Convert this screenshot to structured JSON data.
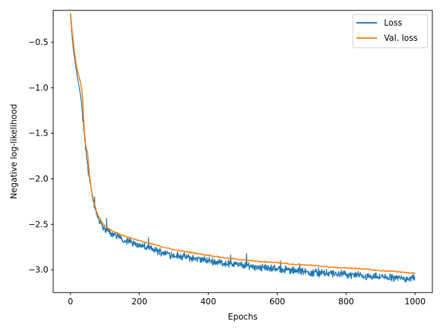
{
  "chart_data": {
    "type": "line",
    "title": "",
    "xlabel": "Epochs",
    "ylabel": "Negative log-likelihood",
    "xlim": [
      -50,
      1050
    ],
    "ylim": [
      -3.25,
      -0.15
    ],
    "xticks": [
      0,
      200,
      400,
      600,
      800,
      1000
    ],
    "yticks": [
      -3.0,
      -2.5,
      -2.0,
      -1.5,
      -1.0,
      -0.5
    ],
    "xtick_labels": [
      "0",
      "200",
      "400",
      "600",
      "800",
      "1000"
    ],
    "ytick_labels": [
      "−3.0",
      "−2.5",
      "−2.0",
      "−1.5",
      "−1.0",
      "−0.5"
    ],
    "grid": false,
    "legend_position": "top-right",
    "series": [
      {
        "name": "Loss",
        "color": "#1f77b4",
        "noisy": true,
        "x": [
          0,
          5,
          10,
          15,
          20,
          25,
          30,
          35,
          40,
          45,
          50,
          55,
          60,
          65,
          70,
          75,
          80,
          90,
          100,
          110,
          120,
          140,
          160,
          180,
          200,
          250,
          300,
          350,
          400,
          450,
          500,
          550,
          600,
          650,
          700,
          750,
          800,
          850,
          900,
          950,
          1000
        ],
        "y": [
          -0.2,
          -0.45,
          -0.62,
          -0.75,
          -0.88,
          -0.98,
          -1.1,
          -1.3,
          -1.5,
          -1.7,
          -1.85,
          -2.0,
          -2.12,
          -2.22,
          -2.3,
          -2.37,
          -2.42,
          -2.5,
          -2.55,
          -2.58,
          -2.6,
          -2.64,
          -2.68,
          -2.7,
          -2.73,
          -2.79,
          -2.84,
          -2.87,
          -2.9,
          -2.93,
          -2.95,
          -2.97,
          -2.99,
          -3.01,
          -3.03,
          -3.04,
          -3.05,
          -3.07,
          -3.08,
          -3.09,
          -3.1
        ]
      },
      {
        "name": "Val. loss",
        "color": "#ff7f0e",
        "noisy": false,
        "x": [
          0,
          5,
          10,
          15,
          20,
          25,
          30,
          35,
          40,
          45,
          50,
          55,
          60,
          65,
          70,
          75,
          80,
          90,
          100,
          120,
          150,
          200,
          250,
          300,
          350,
          400,
          450,
          500,
          550,
          600,
          650,
          700,
          750,
          800,
          850,
          900,
          950,
          1000
        ],
        "y": [
          -0.18,
          -0.38,
          -0.55,
          -0.7,
          -0.8,
          -0.88,
          -0.95,
          -1.08,
          -1.45,
          -1.65,
          -1.72,
          -1.95,
          -2.1,
          -2.2,
          -2.28,
          -2.35,
          -2.4,
          -2.47,
          -2.52,
          -2.57,
          -2.62,
          -2.68,
          -2.73,
          -2.78,
          -2.81,
          -2.84,
          -2.87,
          -2.89,
          -2.91,
          -2.92,
          -2.94,
          -2.95,
          -2.97,
          -2.98,
          -2.99,
          -3.01,
          -3.02,
          -3.04
        ]
      }
    ]
  }
}
